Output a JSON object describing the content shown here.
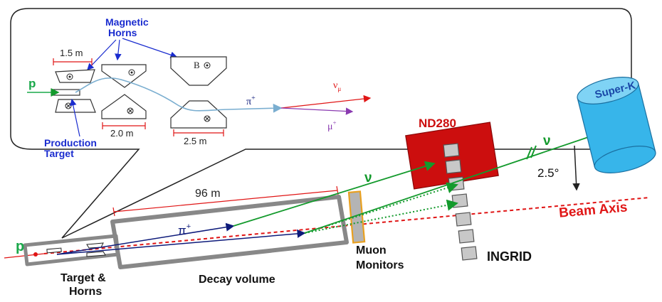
{
  "labels": {
    "magnetic_horns_line1": "Magnetic",
    "magnetic_horns_line2": "Horns",
    "production_target_line1": "Production",
    "production_target_line2": "Target",
    "proton_inset": "p",
    "proton_main": "p",
    "pion_inset": "π",
    "pion_main": "π",
    "pion_charge": "+",
    "neutrino_mu": "ν",
    "neutrino_mu_sub": "μ",
    "muon_inset": "μ",
    "muon_charge": "+",
    "field_b": "B",
    "dim_1_5m": "1.5 m",
    "dim_2_0m": "2.0 m",
    "dim_2_5m": "2.5 m",
    "dim_96m": "96 m",
    "nd280": "ND280",
    "super_k": "Super-K",
    "nu_upper": "ν",
    "nu_lower": "ν",
    "angle": "2.5°",
    "beam_axis": "Beam Axis",
    "muon_monitors_line1": "Muon",
    "muon_monitors_line2": "Monitors",
    "ingrid": "INGRID",
    "decay_volume": "Decay volume",
    "target_horns_line1": "Target &",
    "target_horns_line2": "Horns"
  },
  "colors": {
    "label_blue": "#1a2ccf",
    "proton_green": "#1aa84a",
    "neutrino_green": "#139a2c",
    "beam_red": "#e01515",
    "nd280_red": "#cc0e0e",
    "superk_cyan": "#37b5ea",
    "muon_orange": "#e8a020",
    "box_gray": "#8c8c8c",
    "pion_blue": "#0d1a7a",
    "muon_purple": "#8a3ab0"
  }
}
